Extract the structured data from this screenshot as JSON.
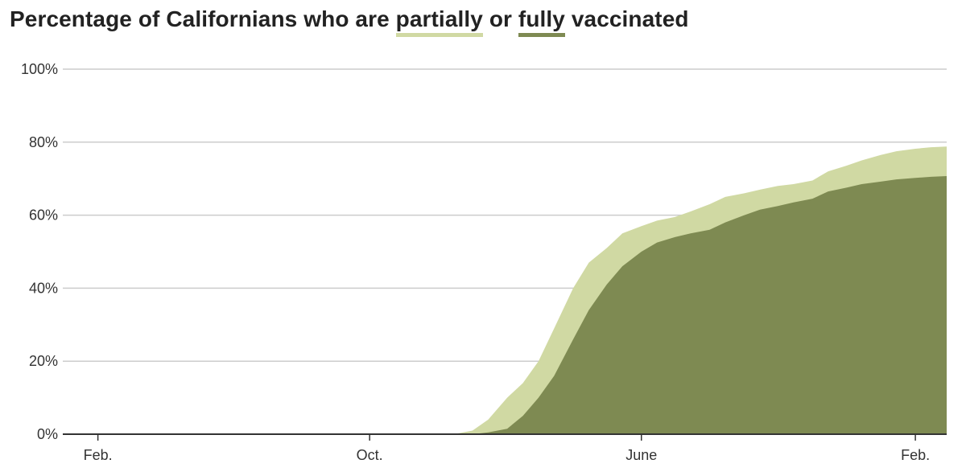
{
  "title": {
    "prefix": "Percentage of Californians who are",
    "partial_word": "partially",
    "middle": "or",
    "full_word": "fully",
    "suffix": "vaccinated"
  },
  "colors": {
    "partial": "#d0d9a3",
    "full": "#7e8a52",
    "grid": "#cccccc",
    "axis": "#333333"
  },
  "chart_data": {
    "type": "area",
    "title": "Percentage of Californians who are partially or fully vaccinated",
    "xlabel": "",
    "ylabel": "",
    "x_ticks": [
      "Feb.",
      "Oct.",
      "June",
      "Feb."
    ],
    "y_ticks": [
      "0%",
      "20%",
      "40%",
      "60%",
      "80%",
      "100%"
    ],
    "ylim": [
      0,
      100
    ],
    "grid": true,
    "legend": "inline-title",
    "x": [
      "2020-02-01",
      "2020-10-01",
      "2020-12-15",
      "2021-01-01",
      "2021-01-15",
      "2021-02-01",
      "2021-02-15",
      "2021-03-01",
      "2021-03-15",
      "2021-04-01",
      "2021-04-15",
      "2021-05-01",
      "2021-05-15",
      "2021-06-01",
      "2021-06-15",
      "2021-07-01",
      "2021-07-15",
      "2021-08-01",
      "2021-08-15",
      "2021-09-01",
      "2021-09-15",
      "2021-10-01",
      "2021-10-15",
      "2021-11-01",
      "2021-11-15",
      "2021-12-01",
      "2021-12-15",
      "2022-01-01",
      "2022-01-15",
      "2022-02-01",
      "2022-02-15",
      "2022-03-01"
    ],
    "series": [
      {
        "name": "partially",
        "values": [
          0,
          0,
          0,
          1,
          4,
          10,
          14,
          20,
          29,
          40,
          47,
          51,
          55,
          57,
          58.5,
          59.5,
          61,
          63,
          65,
          66,
          67,
          68,
          68.5,
          69.5,
          72,
          73.5,
          75,
          76.5,
          77.5,
          78.2,
          78.6,
          78.8
        ]
      },
      {
        "name": "fully",
        "values": [
          0,
          0,
          0,
          0,
          0.5,
          1.5,
          5,
          10,
          16,
          26,
          34,
          41,
          46,
          50,
          52.5,
          54,
          55,
          56,
          58,
          60,
          61.5,
          62.5,
          63.5,
          64.5,
          66.5,
          67.5,
          68.5,
          69.2,
          69.8,
          70.2,
          70.5,
          70.7
        ]
      }
    ]
  }
}
